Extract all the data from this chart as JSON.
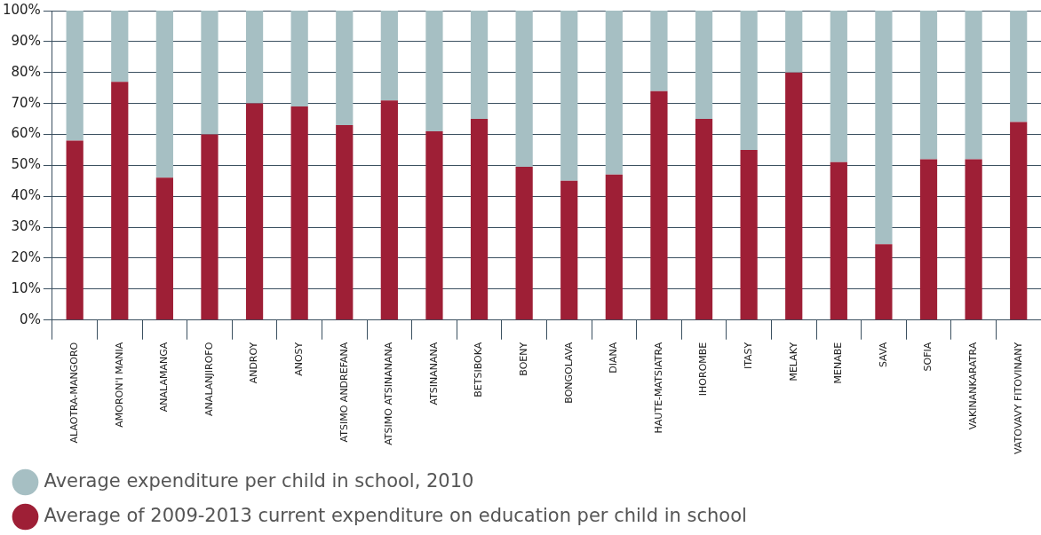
{
  "chart_data": {
    "type": "bar",
    "stacked": true,
    "categories": [
      "ALAOTRA-MANGORO",
      "AMORON'I MANIA",
      "ANALAMANGA",
      "ANALANJIROFO",
      "ANDROY",
      "ANOSY",
      "ATSIMO ANDREFANA",
      "ATSIMO ATSINANANA",
      "ATSINANANA",
      "BETSIBOKA",
      "BOENY",
      "BONGOLAVA",
      "DIANA",
      "HAUTE-MATSIATRA",
      "IHOROMBE",
      "ITASY",
      "MELAKY",
      "MENABE",
      "SAVA",
      "SOFIA",
      "VAKINANKARATRA",
      "VATOVAVY FITOVINANY"
    ],
    "series": [
      {
        "name": "Average of 2009-2013 current expenditure on education per child in school",
        "color": "#9e1f36",
        "values": [
          58,
          77,
          46,
          60,
          70,
          69,
          63,
          71,
          61,
          65,
          49.5,
          45,
          47,
          74,
          65,
          55,
          80,
          51,
          24.5,
          52,
          52,
          64
        ]
      },
      {
        "name": "Average expenditure per child in school, 2010",
        "color": "#a6bfc3",
        "values": [
          42,
          23,
          54,
          40,
          30,
          31,
          37,
          29,
          39,
          35,
          50.5,
          55,
          53,
          26,
          35,
          45,
          20,
          49,
          75.5,
          48,
          48,
          36
        ]
      }
    ],
    "ylim": [
      0,
      100
    ],
    "yticks": [
      {
        "value": 0,
        "label": "0%"
      },
      {
        "value": 10,
        "label": "10%"
      },
      {
        "value": 20,
        "label": "20%"
      },
      {
        "value": 30,
        "label": "30%"
      },
      {
        "value": 40,
        "label": "40%"
      },
      {
        "value": 50,
        "label": "50%"
      },
      {
        "value": 60,
        "label": "60%"
      },
      {
        "value": 70,
        "label": "70%"
      },
      {
        "value": 80,
        "label": "80%"
      },
      {
        "value": 90,
        "label": "90%"
      },
      {
        "value": 100,
        "label": "100%"
      }
    ],
    "grid": "y",
    "legend": "bottom"
  }
}
